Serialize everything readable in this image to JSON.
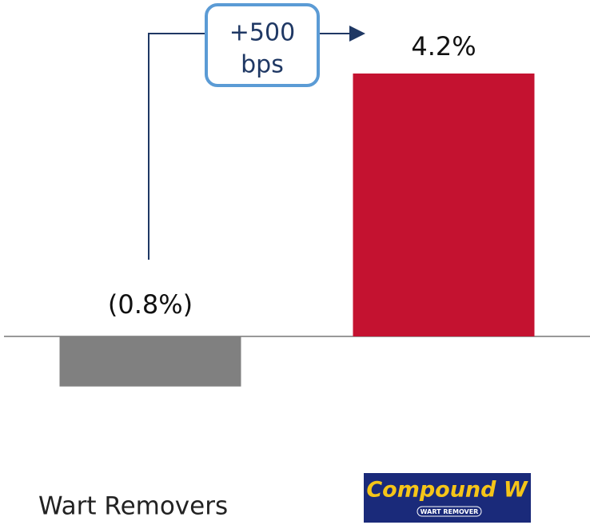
{
  "chart_data": {
    "type": "bar",
    "categories": [
      "Wart Removers",
      "Compound W"
    ],
    "logo_subtitle": "WART REMOVER",
    "values": [
      -0.8,
      4.2
    ],
    "value_labels": [
      "(0.8%)",
      "4.2%"
    ],
    "colors": [
      "#808080",
      "#c41230"
    ],
    "annotation": [
      "+500",
      "bps"
    ]
  }
}
